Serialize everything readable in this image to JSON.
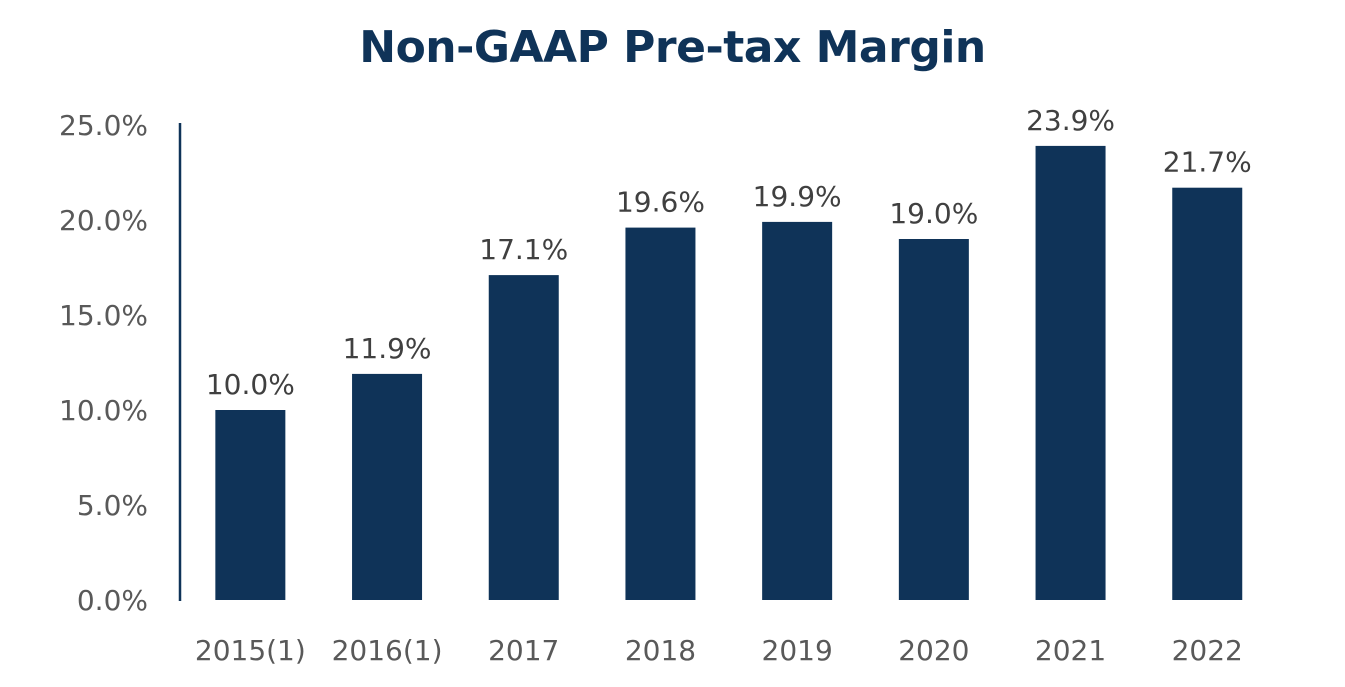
{
  "chart_data": {
    "type": "bar",
    "title": "Non-GAAP Pre-tax Margin",
    "xlabel": "",
    "ylabel": "",
    "categories": [
      "2015(1)",
      "2016(1)",
      "2017",
      "2018",
      "2019",
      "2020",
      "2021",
      "2022"
    ],
    "values": [
      10.0,
      11.9,
      17.1,
      19.6,
      19.9,
      19.0,
      23.9,
      21.7
    ],
    "data_labels": [
      "10.0%",
      "11.9%",
      "17.1%",
      "19.6%",
      "19.9%",
      "19.0%",
      "23.9%",
      "21.7%"
    ],
    "y_ticks": [
      0,
      5,
      10,
      15,
      20,
      25
    ],
    "y_tick_labels": [
      "0.0%",
      "5.0%",
      "10.0%",
      "15.0%",
      "20.0%",
      "25.0%"
    ],
    "ylim": [
      0,
      25
    ],
    "grid": false,
    "legend": "none",
    "bar_color": "#0f3358",
    "axis_color": "#0f3358"
  }
}
